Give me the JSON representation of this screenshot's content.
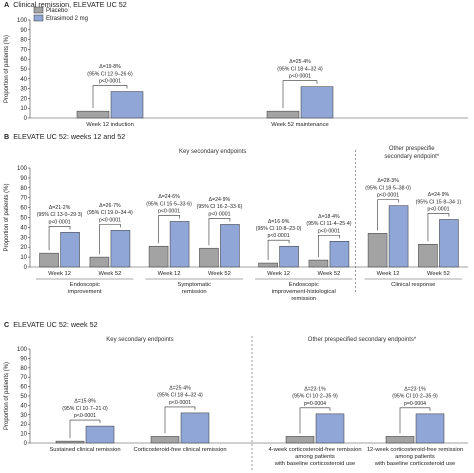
{
  "legend": {
    "items": [
      {
        "label": "Placebo",
        "color": "#a3a3a3"
      },
      {
        "label": "Etrasimod 2 mg",
        "color": "#8fa6d6"
      }
    ]
  },
  "chart_data": [
    {
      "panel": "A",
      "title": "Clinical remission, ELEVATE UC 52",
      "type": "bar",
      "ylabel": "Proportion of patients (%)",
      "ylim": [
        0,
        100
      ],
      "yticks": [
        0,
        10,
        20,
        30,
        40,
        50,
        60,
        70,
        80,
        90,
        100
      ],
      "categories": [
        "Week 12 induction",
        "Week 52 maintenance"
      ],
      "series": [
        {
          "name": "Placebo",
          "values": [
            7,
            7
          ]
        },
        {
          "name": "Etrasimod 2 mg",
          "values": [
            27,
            32
          ]
        }
      ],
      "annotations": [
        [
          "Δ=19·8%",
          "(95% CI 12·9–26·6)",
          "p<0·0001"
        ],
        [
          "Δ=25·4%",
          "(95% CI 18·4–32·4)",
          "p<0·0001"
        ]
      ]
    },
    {
      "panel": "B",
      "title": "ELEVATE UC 52: weeks 12 and 52",
      "type": "bar",
      "ylabel": "Proportion of patients (%)",
      "ylim": [
        0,
        100
      ],
      "yticks": [
        0,
        10,
        20,
        30,
        40,
        50,
        60,
        70,
        80,
        90,
        100
      ],
      "section_labels": [
        "Key secondary endpoints",
        "Other prespecified secondary endpoint*"
      ],
      "categories": [
        "Week 12",
        "Week 52",
        "Week 12",
        "Week 52",
        "Week 12",
        "Week 52",
        "Week 12",
        "Week 52"
      ],
      "groups": [
        "Endoscopic improvement",
        "Symptomatic remission",
        "Endoscopic improvement-histological remission",
        "Clinical response"
      ],
      "series": [
        {
          "name": "Placebo",
          "values": [
            14,
            10,
            21,
            19,
            4,
            7,
            34,
            23
          ]
        },
        {
          "name": "Etrasimod 2 mg",
          "values": [
            35,
            37,
            46,
            43,
            21,
            26,
            62,
            48
          ]
        }
      ],
      "annotations": [
        [
          "Δ=21·2%",
          "(95% CI 13·0–29·3)",
          "p<0·0001"
        ],
        [
          "Δ=26·7%",
          "(95% CI 19·0–34·4)",
          "p<0·0001"
        ],
        [
          "Δ=24·6%",
          "(95% CI 15·5–33·6)",
          "p<0·0001"
        ],
        [
          "Δ=24·9%",
          "(95% CI 16·2–33·6)",
          "p<0·0001"
        ],
        [
          "Δ=16·9%",
          "(95% CI 10·8–23·0)",
          "p<0·0001"
        ],
        [
          "Δ=18·4%",
          "(95% CI 11·4–25·4)",
          "p<0·0001"
        ],
        [
          "Δ=28·3%",
          "(95% CI 18·5–38·0)",
          "p<0·0001"
        ],
        [
          "Δ=24·9%",
          "(95% CI 15·8–34·1)",
          "p<0·0001"
        ]
      ]
    },
    {
      "panel": "C",
      "title": "ELEVATE UC 52: week 52",
      "type": "bar",
      "ylabel": "Proportion of patients (%)",
      "ylim": [
        0,
        100
      ],
      "yticks": [
        0,
        10,
        20,
        30,
        40,
        50,
        60,
        70,
        80,
        90,
        100
      ],
      "section_labels": [
        "Key secondary endpoints",
        "Other prespecified secondary endpoints*"
      ],
      "categories": [
        "Sustained clinical remission",
        "Corticosteroid-free clinical remission",
        "4-week corticosteroid-free remission among patients with baseline corticosteroid use",
        "12-week corticosteroid-free remission among patients with baseline corticosteroid use"
      ],
      "category_lines": [
        [
          "Sustained clinical remission"
        ],
        [
          "Corticosteroid-free clinical remission"
        ],
        [
          "4-week corticosteroid-free remission",
          "among patients",
          "with baseline corticosteroid use"
        ],
        [
          "12-week corticosteroid-free remission",
          "among patients",
          "with baseline corticosteroid use"
        ]
      ],
      "series": [
        {
          "name": "Placebo",
          "values": [
            2,
            7,
            7,
            7
          ]
        },
        {
          "name": "Etrasimod 2 mg",
          "values": [
            18,
            32,
            31,
            31
          ]
        }
      ],
      "annotations": [
        [
          "Δ=15·8%",
          "(95% CI 10·7–21·0)",
          "p<0·0001"
        ],
        [
          "Δ=25·4%",
          "(95% CI 18·4–32·4)",
          "p<0·0001"
        ],
        [
          "Δ=23·1%",
          "(95% CI 10·2–35·9)",
          "p=0·0004"
        ],
        [
          "Δ=23·1%",
          "(95% CI 10·2–35·9)",
          "p=0·0004"
        ]
      ]
    }
  ]
}
